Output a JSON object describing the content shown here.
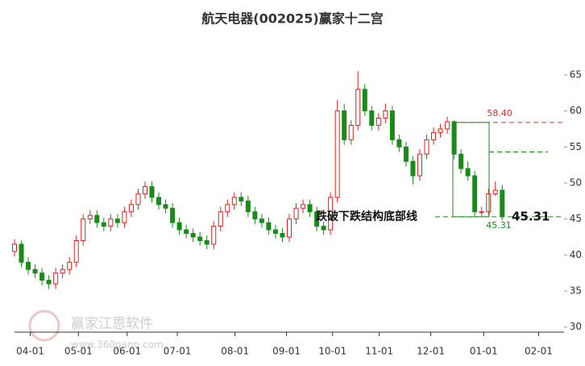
{
  "chart_data": {
    "type": "candlestick",
    "title": "航天电器(002025)赢家十二宫",
    "up_color": "#e02020",
    "down_color": "#1a8a1a",
    "xlim": [
      0,
      80
    ],
    "xticks": [
      {
        "value": 2.3,
        "label": "04-01"
      },
      {
        "value": 9.3,
        "label": "05-01"
      },
      {
        "value": 16.4,
        "label": "06-01"
      },
      {
        "value": 23.7,
        "label": "07-01"
      },
      {
        "value": 32.1,
        "label": "08-01"
      },
      {
        "value": 39.6,
        "label": "09-01"
      },
      {
        "value": 46.3,
        "label": "10-01"
      },
      {
        "value": 53.1,
        "label": "11-01"
      },
      {
        "value": 60.6,
        "label": "12-01"
      },
      {
        "value": 68.3,
        "label": "01-01"
      },
      {
        "value": 76.3,
        "label": "02-01"
      }
    ],
    "ylim": [
      29.3,
      69.8
    ],
    "yticks": [
      30,
      35,
      40,
      45,
      50,
      55,
      60,
      65
    ],
    "x": [
      0,
      1,
      2,
      3,
      4,
      5,
      6,
      7,
      8,
      9,
      10,
      11,
      12,
      13,
      14,
      15,
      16,
      17,
      18,
      19,
      20,
      21,
      22,
      23,
      24,
      25,
      26,
      27,
      28,
      29,
      30,
      31,
      32,
      33,
      34,
      35,
      36,
      37,
      38,
      39,
      40,
      41,
      42,
      43,
      44,
      45,
      46,
      47,
      48,
      49,
      50,
      51,
      52,
      53,
      54,
      55,
      56,
      57,
      58,
      59,
      60,
      61,
      62,
      63,
      64,
      65,
      66,
      67,
      68,
      69,
      70,
      71
    ],
    "open": [
      40.5,
      41.5,
      39,
      38,
      37.5,
      36.5,
      36,
      37.5,
      38,
      39,
      42,
      45,
      45.5,
      44.5,
      44,
      45,
      44.5,
      46,
      47,
      48.5,
      49.5,
      48,
      47,
      46.5,
      44.5,
      43.5,
      43,
      42.5,
      42,
      41.5,
      44,
      46,
      47,
      48,
      47.5,
      46,
      45,
      44.5,
      43.5,
      43,
      42.5,
      45,
      46.5,
      47,
      46,
      44,
      43.5,
      48,
      60,
      56,
      58,
      63,
      60,
      58,
      59,
      60,
      56,
      55,
      53,
      51,
      54,
      56,
      57,
      57.5,
      58.5,
      54,
      52,
      51,
      46,
      46,
      48.5,
      49
    ],
    "high": [
      42.2,
      42,
      39.7,
      38.7,
      38.2,
      37.2,
      38.2,
      38.7,
      39.7,
      42.7,
      45.7,
      46.2,
      46.2,
      45.2,
      45.7,
      45.7,
      46.7,
      47.7,
      49.2,
      50.2,
      50.2,
      48.7,
      47.7,
      47.2,
      45.2,
      44.2,
      43.7,
      43.2,
      42.7,
      44.7,
      46.7,
      47.7,
      48.7,
      48.7,
      48.2,
      46.7,
      45.7,
      45.2,
      44.2,
      43.7,
      45.7,
      47.2,
      47.7,
      47.7,
      46.7,
      44.7,
      48.7,
      61.5,
      61,
      58.7,
      65.5,
      63.7,
      60.7,
      59.7,
      61,
      60.7,
      56.7,
      55.7,
      53.7,
      54.7,
      56.7,
      57.7,
      58.2,
      59.2,
      58.7,
      54.7,
      53,
      51.7,
      46.7,
      49.2,
      50.2,
      49.7
    ],
    "low": [
      39.8,
      38.3,
      37.3,
      36.8,
      35.8,
      35.3,
      35.3,
      36.8,
      37.3,
      38.3,
      41.3,
      44.3,
      43.8,
      43.3,
      43.3,
      43.8,
      43.8,
      45.3,
      46.3,
      47.8,
      47.3,
      46.3,
      45.8,
      43.8,
      42.8,
      42.3,
      41.8,
      41.3,
      40.8,
      40.8,
      43.3,
      45.3,
      46.3,
      46.8,
      45.3,
      44.3,
      43.8,
      42.8,
      42.3,
      41.8,
      41.8,
      44.3,
      45.8,
      45.3,
      43.3,
      42.8,
      42.8,
      47.3,
      55.3,
      55.3,
      57.3,
      59.3,
      57.3,
      57.3,
      58.3,
      55.3,
      54.3,
      52.3,
      49.8,
      50.3,
      53.3,
      55.3,
      56.3,
      56.8,
      53.3,
      51.3,
      50.3,
      45.3,
      45.3,
      45.5,
      48.2,
      44.8
    ],
    "close": [
      41.5,
      39,
      38,
      37.5,
      36.5,
      36,
      37.5,
      38,
      39,
      42,
      45,
      45.5,
      44.5,
      44,
      45,
      44.5,
      46,
      47,
      48.5,
      49.5,
      48,
      47,
      46.5,
      44.5,
      43.5,
      43,
      42.5,
      42,
      41.5,
      44,
      46,
      47,
      48,
      47.5,
      46,
      45,
      44.5,
      43.5,
      43,
      42.5,
      45,
      46.5,
      47,
      46,
      44,
      43.5,
      48,
      60,
      56,
      58,
      63,
      60,
      58,
      59,
      60,
      56,
      55,
      53,
      51,
      54,
      56,
      57,
      57.5,
      58.5,
      54,
      52,
      51,
      46,
      46,
      48.5,
      49,
      45.31
    ],
    "levels": [
      {
        "value": 58.4,
        "label": "58.40",
        "color": "#e03030"
      },
      {
        "value": 54.3,
        "color": "#1a8a1a"
      },
      {
        "value": 45.31,
        "label": "45.31",
        "color": "#1a8a1a"
      }
    ],
    "annotation": "跌破下跌结构底部线",
    "watermark": [
      "赢家江恩软件",
      "www.360gann.com"
    ]
  }
}
